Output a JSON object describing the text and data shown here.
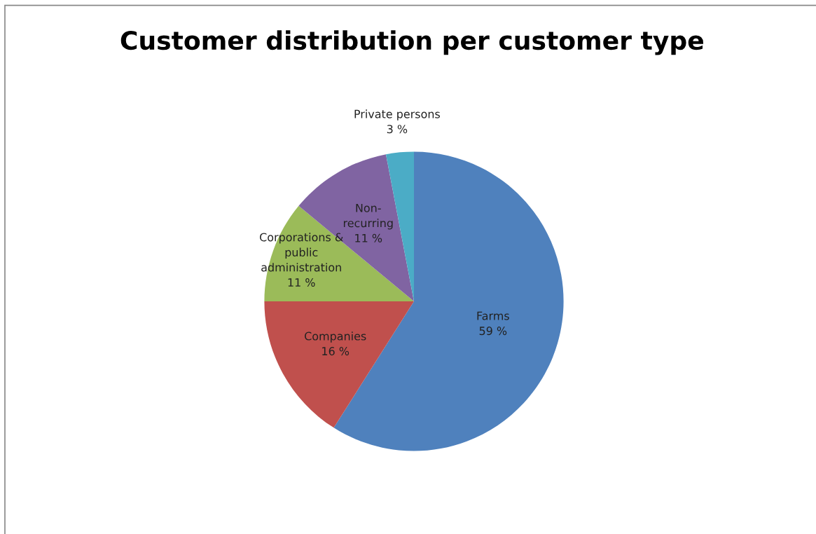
{
  "chart_data": {
    "type": "pie",
    "title": "Customer distribution per customer type",
    "categories": [
      "Farms",
      "Companies",
      "Corporations &\npublic\nadministration",
      "Non-\nrecurring",
      "Private persons"
    ],
    "values": [
      59,
      16,
      11,
      11,
      3
    ],
    "value_labels": [
      "59 %",
      "16 %",
      "11 %",
      "11 %",
      "3 %"
    ],
    "colors": [
      "#4f81bd",
      "#c0504d",
      "#9bbb59",
      "#8064a2",
      "#4bacc6"
    ],
    "legend": false
  }
}
